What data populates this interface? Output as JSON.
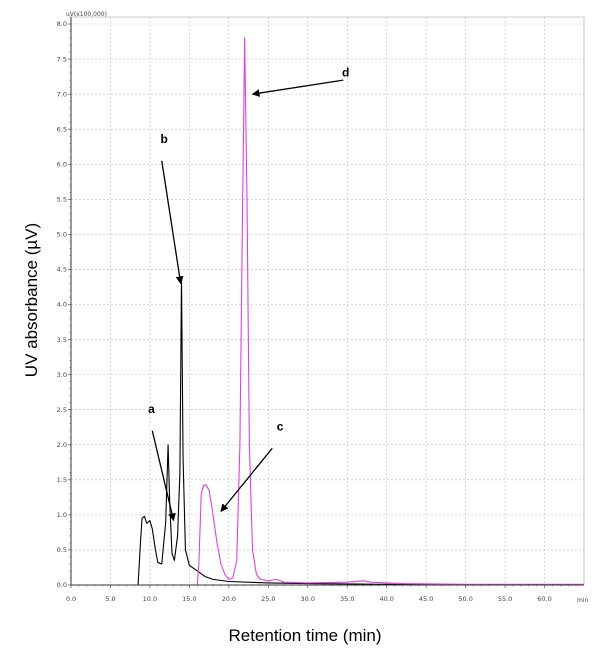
{
  "chart_data": {
    "type": "line",
    "xlabel": "Retention time (min)",
    "ylabel": "UV absorbance (µV)",
    "y_unit_label": "uV(x100,000)",
    "x_unit_label": "min",
    "xlim": [
      0,
      65
    ],
    "ylim": [
      0,
      8.1
    ],
    "x_ticks": [
      0,
      5,
      10,
      15,
      20,
      25,
      30,
      35,
      40,
      45,
      50,
      55,
      60
    ],
    "y_ticks": [
      0,
      0.5,
      1.0,
      1.5,
      2.0,
      2.5,
      3.0,
      3.5,
      4.0,
      4.5,
      5.0,
      5.5,
      6.0,
      6.5,
      7.0,
      7.5,
      8.0
    ],
    "grid": true,
    "series": [
      {
        "color": "#000000",
        "points": [
          [
            0,
            0.0
          ],
          [
            8.5,
            0.0
          ],
          [
            8.8,
            0.6
          ],
          [
            9.0,
            0.95
          ],
          [
            9.3,
            0.98
          ],
          [
            9.6,
            0.88
          ],
          [
            10.0,
            0.92
          ],
          [
            10.3,
            0.8
          ],
          [
            10.7,
            0.5
          ],
          [
            11.0,
            0.32
          ],
          [
            11.5,
            0.3
          ],
          [
            12.0,
            0.9
          ],
          [
            12.3,
            2.0
          ],
          [
            12.5,
            1.2
          ],
          [
            12.8,
            0.45
          ],
          [
            13.1,
            0.35
          ],
          [
            13.5,
            0.7
          ],
          [
            13.8,
            1.6
          ],
          [
            14.0,
            4.4
          ],
          [
            14.2,
            1.8
          ],
          [
            14.5,
            0.5
          ],
          [
            15.0,
            0.28
          ],
          [
            16.0,
            0.2
          ],
          [
            17.0,
            0.12
          ],
          [
            18.0,
            0.08
          ],
          [
            20.0,
            0.05
          ],
          [
            25.0,
            0.03
          ],
          [
            30.0,
            0.02
          ],
          [
            40.0,
            0.01
          ],
          [
            50.0,
            0.0
          ],
          [
            65.0,
            0.0
          ]
        ]
      },
      {
        "color": "#e040e0",
        "points": [
          [
            0,
            0.0
          ],
          [
            16.0,
            0.0
          ],
          [
            16.2,
            0.3
          ],
          [
            16.5,
            1.3
          ],
          [
            16.8,
            1.42
          ],
          [
            17.1,
            1.43
          ],
          [
            17.5,
            1.35
          ],
          [
            18.0,
            1.0
          ],
          [
            18.5,
            0.6
          ],
          [
            19.0,
            0.3
          ],
          [
            19.5,
            0.15
          ],
          [
            20.0,
            0.08
          ],
          [
            20.5,
            0.1
          ],
          [
            21.0,
            0.35
          ],
          [
            21.4,
            2.0
          ],
          [
            21.7,
            5.0
          ],
          [
            22.0,
            7.8
          ],
          [
            22.3,
            5.5
          ],
          [
            22.6,
            2.0
          ],
          [
            23.0,
            0.5
          ],
          [
            23.5,
            0.15
          ],
          [
            24.0,
            0.08
          ],
          [
            25.0,
            0.06
          ],
          [
            26.0,
            0.08
          ],
          [
            27.0,
            0.04
          ],
          [
            30.0,
            0.03
          ],
          [
            35.0,
            0.04
          ],
          [
            37.0,
            0.06
          ],
          [
            38.0,
            0.04
          ],
          [
            42.0,
            0.02
          ],
          [
            50.0,
            0.01
          ],
          [
            55.0,
            0.01
          ],
          [
            65.0,
            0.01
          ]
        ]
      }
    ],
    "annotations": [
      {
        "label": "a",
        "text_x": 10.2,
        "text_y": 2.45,
        "tail": [
          10.3,
          2.2
        ],
        "head": [
          13.0,
          0.92
        ]
      },
      {
        "label": "b",
        "text_x": 11.8,
        "text_y": 6.3,
        "tail": [
          11.5,
          6.05
        ],
        "head": [
          13.9,
          4.3
        ]
      },
      {
        "label": "c",
        "text_x": 26.5,
        "text_y": 2.2,
        "tail": [
          25.5,
          1.95
        ],
        "head": [
          19.0,
          1.05
        ]
      },
      {
        "label": "d",
        "text_x": 34.8,
        "text_y": 7.25,
        "tail": [
          34.5,
          7.2
        ],
        "head": [
          23.0,
          7.0
        ]
      }
    ]
  }
}
